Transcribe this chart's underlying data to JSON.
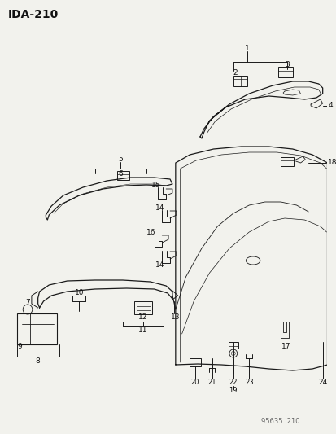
{
  "title": "IDA−210",
  "footer": "95635  210",
  "bg_color": "#f2f2ed",
  "line_color": "#1a1a1a",
  "text_color": "#111111",
  "fig_width": 4.14,
  "fig_height": 5.33,
  "dpi": 100
}
